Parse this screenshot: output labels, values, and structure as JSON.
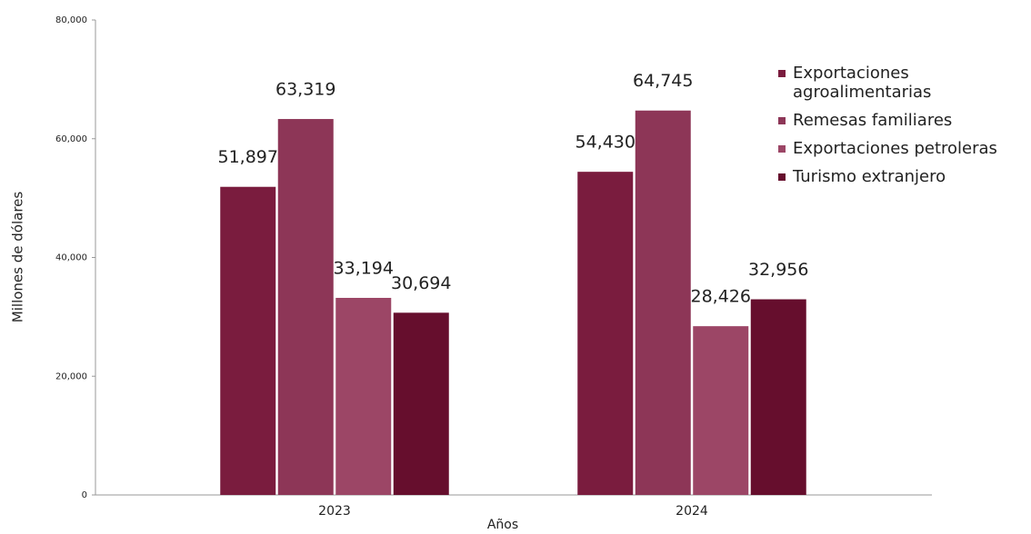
{
  "chart_data": {
    "type": "bar",
    "x_label": "Años",
    "y_label": "Millones de dólares",
    "categories": [
      "2023",
      "2024"
    ],
    "series": [
      {
        "name": "Exportaciones agroalimentarias",
        "color": "#7a1c3e",
        "values": [
          51897,
          54430
        ],
        "value_labels": [
          "51,897",
          "54,430"
        ]
      },
      {
        "name": "Remesas familiares",
        "color": "#8d3657",
        "values": [
          63319,
          64745
        ],
        "value_labels": [
          "63,319",
          "64,745"
        ]
      },
      {
        "name": "Exportaciones petroleras",
        "color": "#9c4666",
        "values": [
          33194,
          28426
        ],
        "value_labels": [
          "33,194",
          "28,426"
        ]
      },
      {
        "name": "Turismo extranjero",
        "color": "#660e2d",
        "values": [
          30694,
          32956
        ],
        "value_labels": [
          "30,694",
          "32,956"
        ]
      }
    ],
    "ylim": [
      0,
      80000
    ],
    "yticks": [
      {
        "value": 0,
        "label": "0"
      },
      {
        "value": 20000,
        "label": "20,000"
      },
      {
        "value": 40000,
        "label": "40,000"
      },
      {
        "value": 60000,
        "label": "60,000"
      },
      {
        "value": 80000,
        "label": "80,000"
      }
    ],
    "grid": false
  }
}
